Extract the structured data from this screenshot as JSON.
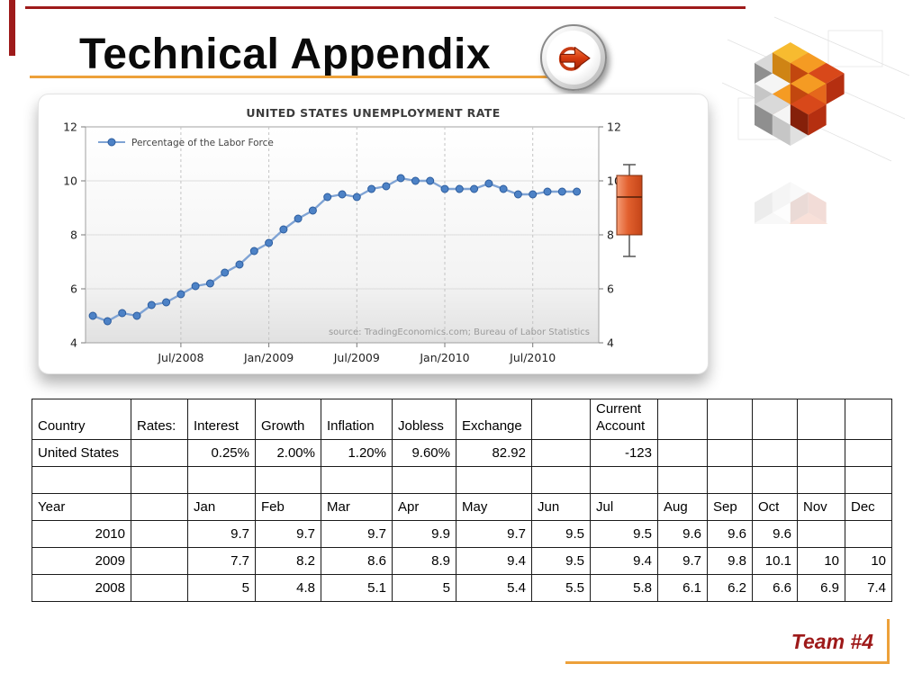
{
  "slide": {
    "title": "Technical Appendix",
    "team_label": "Team #4",
    "accent_red": "#9e1a1a",
    "accent_orange": "#eda13a"
  },
  "chart_data": {
    "type": "line",
    "title": "UNITED STATES UNEMPLOYMENT RATE",
    "legend": "Percentage of the Labor Force",
    "source": "source: TradingEconomics.com; Bureau of Labor Statistics",
    "xlabel": "",
    "ylabel": "",
    "ylim": [
      4,
      12
    ],
    "y_ticks": [
      4,
      6,
      8,
      10,
      12
    ],
    "x_domain": [
      -0.5,
      34.5
    ],
    "x_start": "Jan/2008",
    "x_tick_labels": [
      "Jul/2008",
      "Jan/2009",
      "Jul/2009",
      "Jan/2010",
      "Jul/2010"
    ],
    "x_tick_month_index": [
      6,
      12,
      18,
      24,
      30
    ],
    "grid": true,
    "legend_position": "top-left",
    "line_color": "#7fa3d4",
    "marker_color": "#4d82c6",
    "series": [
      {
        "name": "Percentage of the Labor Force",
        "values": [
          5,
          4.8,
          5.1,
          5,
          5.4,
          5.5,
          5.8,
          6.1,
          6.2,
          6.6,
          6.9,
          7.4,
          7.7,
          8.2,
          8.6,
          8.9,
          9.4,
          9.5,
          9.4,
          9.7,
          9.8,
          10.1,
          10,
          10,
          9.7,
          9.7,
          9.7,
          9.9,
          9.7,
          9.5,
          9.5,
          9.6,
          9.6,
          9.6
        ]
      }
    ],
    "range_indicator": {
      "high": 10.6,
      "box_top": 10.2,
      "median": 9.4,
      "box_bottom": 8.0,
      "low": 7.2,
      "color": "#e2602e"
    }
  },
  "table": {
    "rows": [
      [
        "Country",
        "Rates:",
        "Interest",
        "Growth",
        "Inflation",
        "Jobless",
        "Exchange",
        "",
        "Current Account",
        "",
        "",
        "",
        "",
        ""
      ],
      [
        "United States",
        "",
        "0.25%",
        "2.00%",
        "1.20%",
        "9.60%",
        "82.92",
        "",
        "-123",
        "",
        "",
        "",
        "",
        ""
      ],
      [
        "",
        "",
        "",
        "",
        "",
        "",
        "",
        "",
        "",
        "",
        "",
        "",
        "",
        ""
      ],
      [
        "Year",
        "",
        "Jan",
        "Feb",
        "Mar",
        "Apr",
        "May",
        "Jun",
        "Jul",
        "Aug",
        "Sep",
        "Oct",
        "Nov",
        "Dec"
      ],
      [
        "2010",
        "",
        "9.7",
        "9.7",
        "9.7",
        "9.9",
        "9.7",
        "9.5",
        "9.5",
        "9.6",
        "9.6",
        "9.6",
        "",
        ""
      ],
      [
        "2009",
        "",
        "7.7",
        "8.2",
        "8.6",
        "8.9",
        "9.4",
        "9.5",
        "9.4",
        "9.7",
        "9.8",
        "10.1",
        "10",
        "10"
      ],
      [
        "2008",
        "",
        "5",
        "4.8",
        "5.1",
        "5",
        "5.4",
        "5.5",
        "5.8",
        "6.1",
        "6.2",
        "6.6",
        "6.9",
        "7.4"
      ]
    ]
  }
}
